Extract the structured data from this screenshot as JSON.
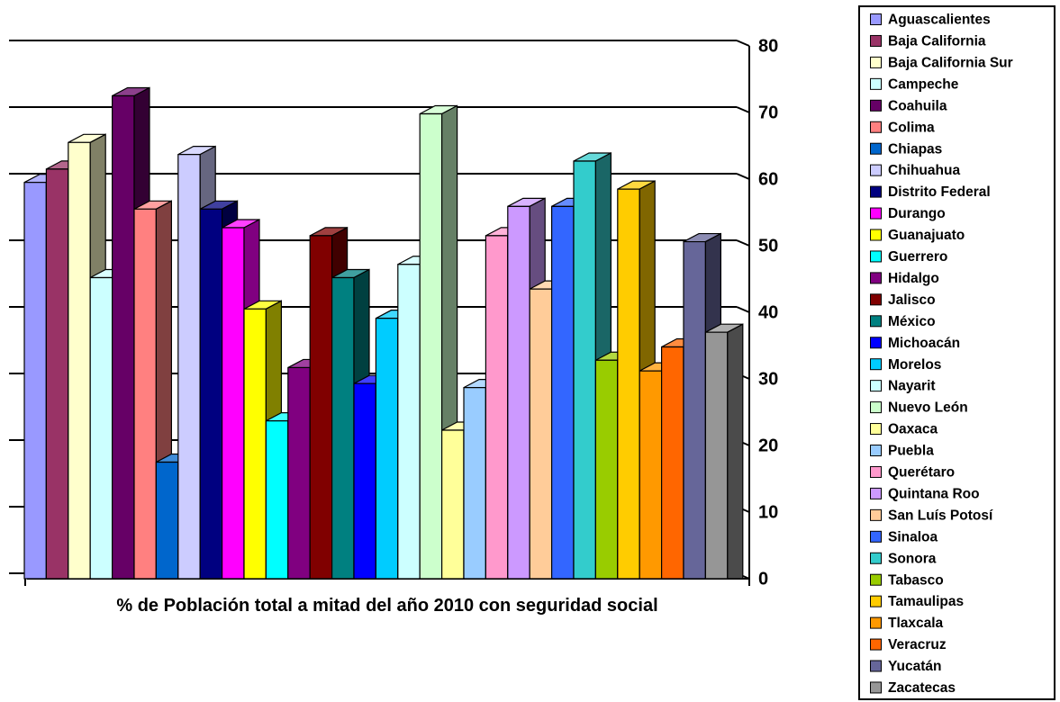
{
  "chart_data": {
    "type": "bar",
    "xlabel": "% de Población total a mitad del año 2010 con seguridad social",
    "ylabel": "",
    "ylim": [
      0,
      80
    ],
    "yticks": [
      0,
      10,
      20,
      30,
      40,
      50,
      60,
      70,
      80
    ],
    "grid": true,
    "legend_position": "right",
    "categories": [
      "Aguascalientes",
      "Baja California",
      "Baja California Sur",
      "Campeche",
      "Coahuila",
      "Colima",
      "Chiapas",
      "Chihuahua",
      "Distrito Federal",
      "Durango",
      "Guanajuato",
      "Guerrero",
      "Hidalgo",
      "Jalisco",
      "México",
      "Michoacán",
      "Morelos",
      "Nayarit",
      "Nuevo León",
      "Oaxaca",
      "Puebla",
      "Querétaro",
      "Quintana Roo",
      "San Luís Potosí",
      "Sinaloa",
      "Sonora",
      "Tabasco",
      "Tamaulipas",
      "Tlaxcala",
      "Veracruz",
      "Yucatán",
      "Zacatecas"
    ],
    "values": [
      59.5,
      61.5,
      65.5,
      45.2,
      72.5,
      55.5,
      17.5,
      63.7,
      55.5,
      52.7,
      40.5,
      23.7,
      31.7,
      51.5,
      45.2,
      29.3,
      39.1,
      47.2,
      69.8,
      22.3,
      28.7,
      51.5,
      55.9,
      43.5,
      55.9,
      62.7,
      32.8,
      58.5,
      31.2,
      34.8,
      50.6,
      37.0
    ],
    "colors": [
      "#9999ff",
      "#993366",
      "#ffffcc",
      "#ccffff",
      "#660066",
      "#ff8080",
      "#0066cc",
      "#ccccff",
      "#000080",
      "#ff00ff",
      "#ffff00",
      "#00ffff",
      "#800080",
      "#800000",
      "#008080",
      "#0000ff",
      "#00ccff",
      "#ccffff",
      "#ccffcc",
      "#ffff99",
      "#99ccff",
      "#ff99cc",
      "#cc99ff",
      "#ffcc99",
      "#3366ff",
      "#33cccc",
      "#99cc00",
      "#ffcc00",
      "#ff9900",
      "#ff6600",
      "#666699",
      "#969696"
    ]
  }
}
